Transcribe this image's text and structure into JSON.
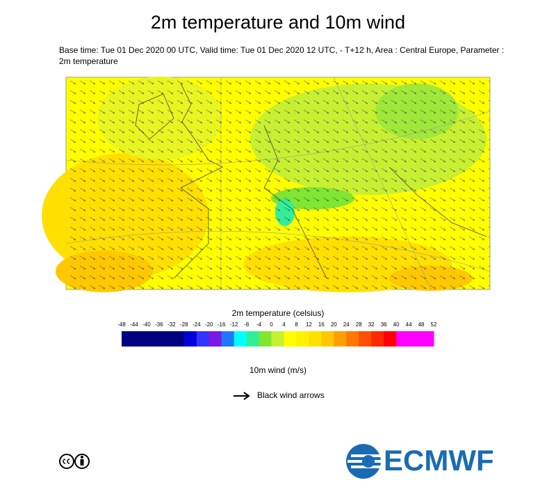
{
  "header": {
    "title": "2m temperature and 10m wind",
    "subtitle_lines": [
      "Base time: Tue 01 Dec 2020 00 UTC, Valid time: Tue 01 Dec 2020 12 UTC, - T+12 h, Area : Central Europe, Parameter :",
      "2m temperature"
    ]
  },
  "temperature_legend": {
    "title": "2m temperature (celsius)",
    "ticks": [
      -48,
      -44,
      -40,
      -36,
      -32,
      -28,
      -24,
      -20,
      -16,
      -12,
      -8,
      -4,
      0,
      4,
      8,
      12,
      16,
      20,
      24,
      28,
      32,
      36,
      40,
      44,
      48,
      52
    ],
    "colors": [
      "#000080",
      "#000080",
      "#000080",
      "#000080",
      "#000080",
      "#0000dd",
      "#3333ff",
      "#7a1ae6",
      "#1e78ff",
      "#00ffff",
      "#33ee99",
      "#80e632",
      "#c8f032",
      "#ffff00",
      "#fff200",
      "#ffe000",
      "#ffc800",
      "#ffa000",
      "#ff7800",
      "#ff5000",
      "#ff2800",
      "#ff0000",
      "#ff00ff",
      "#ff00ff",
      "#ff00ff"
    ]
  },
  "wind_legend": {
    "title": "10m wind (m/s)",
    "label": "Black wind arrows"
  },
  "logo": {
    "text": "ECMWF"
  }
}
